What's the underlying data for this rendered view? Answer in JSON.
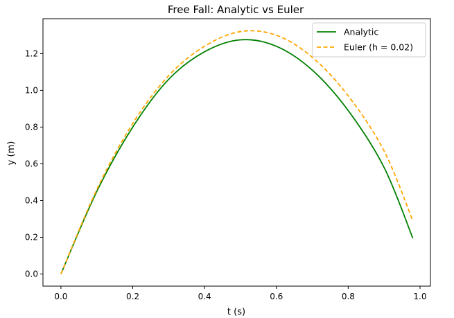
{
  "chart_data": {
    "type": "line",
    "title": "Free Fall: Analytic vs Euler",
    "xlabel": "t (s)",
    "ylabel": "y (m)",
    "xlim": [
      -0.05,
      1.029
    ],
    "ylim": [
      -0.066,
      1.39
    ],
    "xticks": [
      {
        "value": 0.0,
        "label": "0.0"
      },
      {
        "value": 0.2,
        "label": "0.2"
      },
      {
        "value": 0.4,
        "label": "0.4"
      },
      {
        "value": 0.6,
        "label": "0.6"
      },
      {
        "value": 0.8,
        "label": "0.8"
      },
      {
        "value": 1.0,
        "label": "1.0"
      }
    ],
    "yticks": [
      {
        "value": 0.0,
        "label": "0.0"
      },
      {
        "value": 0.2,
        "label": "0.2"
      },
      {
        "value": 0.4,
        "label": "0.4"
      },
      {
        "value": 0.6,
        "label": "0.6"
      },
      {
        "value": 0.8,
        "label": "0.8"
      },
      {
        "value": 1.0,
        "label": "1.0"
      },
      {
        "value": 1.2,
        "label": "1.2"
      }
    ],
    "grid": false,
    "legend_position": "top-right",
    "x": [
      0.0,
      0.1,
      0.2,
      0.3,
      0.4,
      0.5,
      0.6,
      0.7,
      0.8,
      0.9,
      0.98
    ],
    "series": [
      {
        "name": "Analytic",
        "color": "#008000",
        "style": "solid",
        "values": [
          0.0,
          0.45,
          0.8,
          1.06,
          1.21,
          1.275,
          1.24,
          1.11,
          0.89,
          0.58,
          0.195
        ]
      },
      {
        "name": "Euler (h = 0.02)",
        "color": "#FFA500",
        "style": "dashed",
        "values": [
          0.0,
          0.46,
          0.82,
          1.08,
          1.24,
          1.32,
          1.3,
          1.18,
          0.97,
          0.67,
          0.29
        ]
      }
    ]
  }
}
